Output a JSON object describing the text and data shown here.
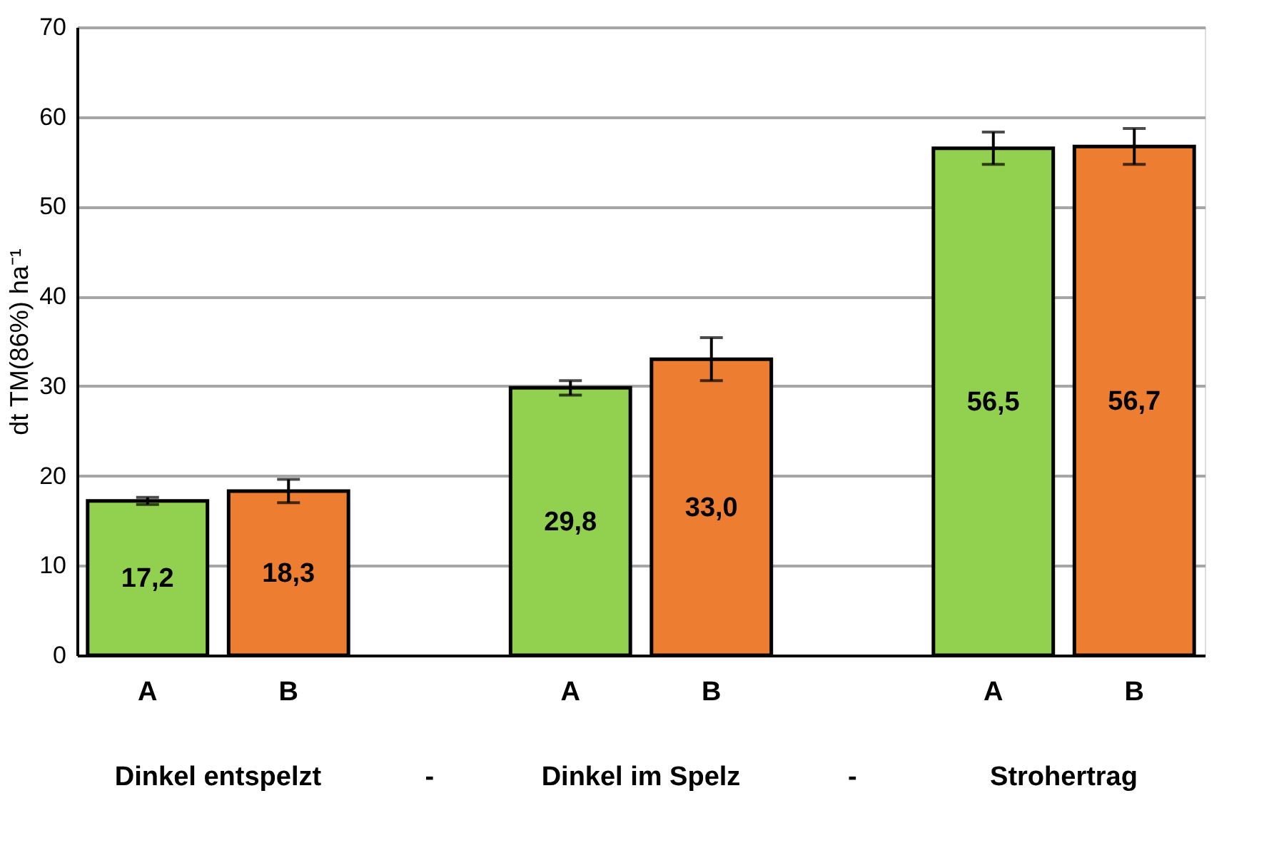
{
  "chart_data": {
    "type": "bar",
    "ylabel": "dt TM(86%) ha⁻¹",
    "categories": [
      "A",
      "B",
      null,
      "A",
      "B",
      null,
      "A",
      "B"
    ],
    "values": [
      17.2,
      18.3,
      null,
      29.8,
      33.0,
      null,
      56.5,
      56.7
    ],
    "colors": [
      "#92d050",
      "#ed7d31",
      "#92d050",
      "#92d050",
      "#ed7d31",
      "#ed7d31",
      "#92d050",
      "#ed7d31"
    ],
    "errors": [
      0.4,
      1.3,
      null,
      0.8,
      2.4,
      null,
      1.8,
      2.0
    ],
    "value_labels": [
      "17,2",
      "18,3",
      null,
      "29,8",
      "33,0",
      null,
      "56,5",
      "56,7"
    ],
    "annotations": [
      "Dinkel entspelzt",
      "-",
      "Dinkel im Spelz",
      "-",
      "Strohertrag"
    ],
    "ylim": [
      0,
      70
    ],
    "yticks": [
      0,
      10,
      20,
      30,
      40,
      50,
      60,
      70
    ],
    "grid": "y"
  }
}
